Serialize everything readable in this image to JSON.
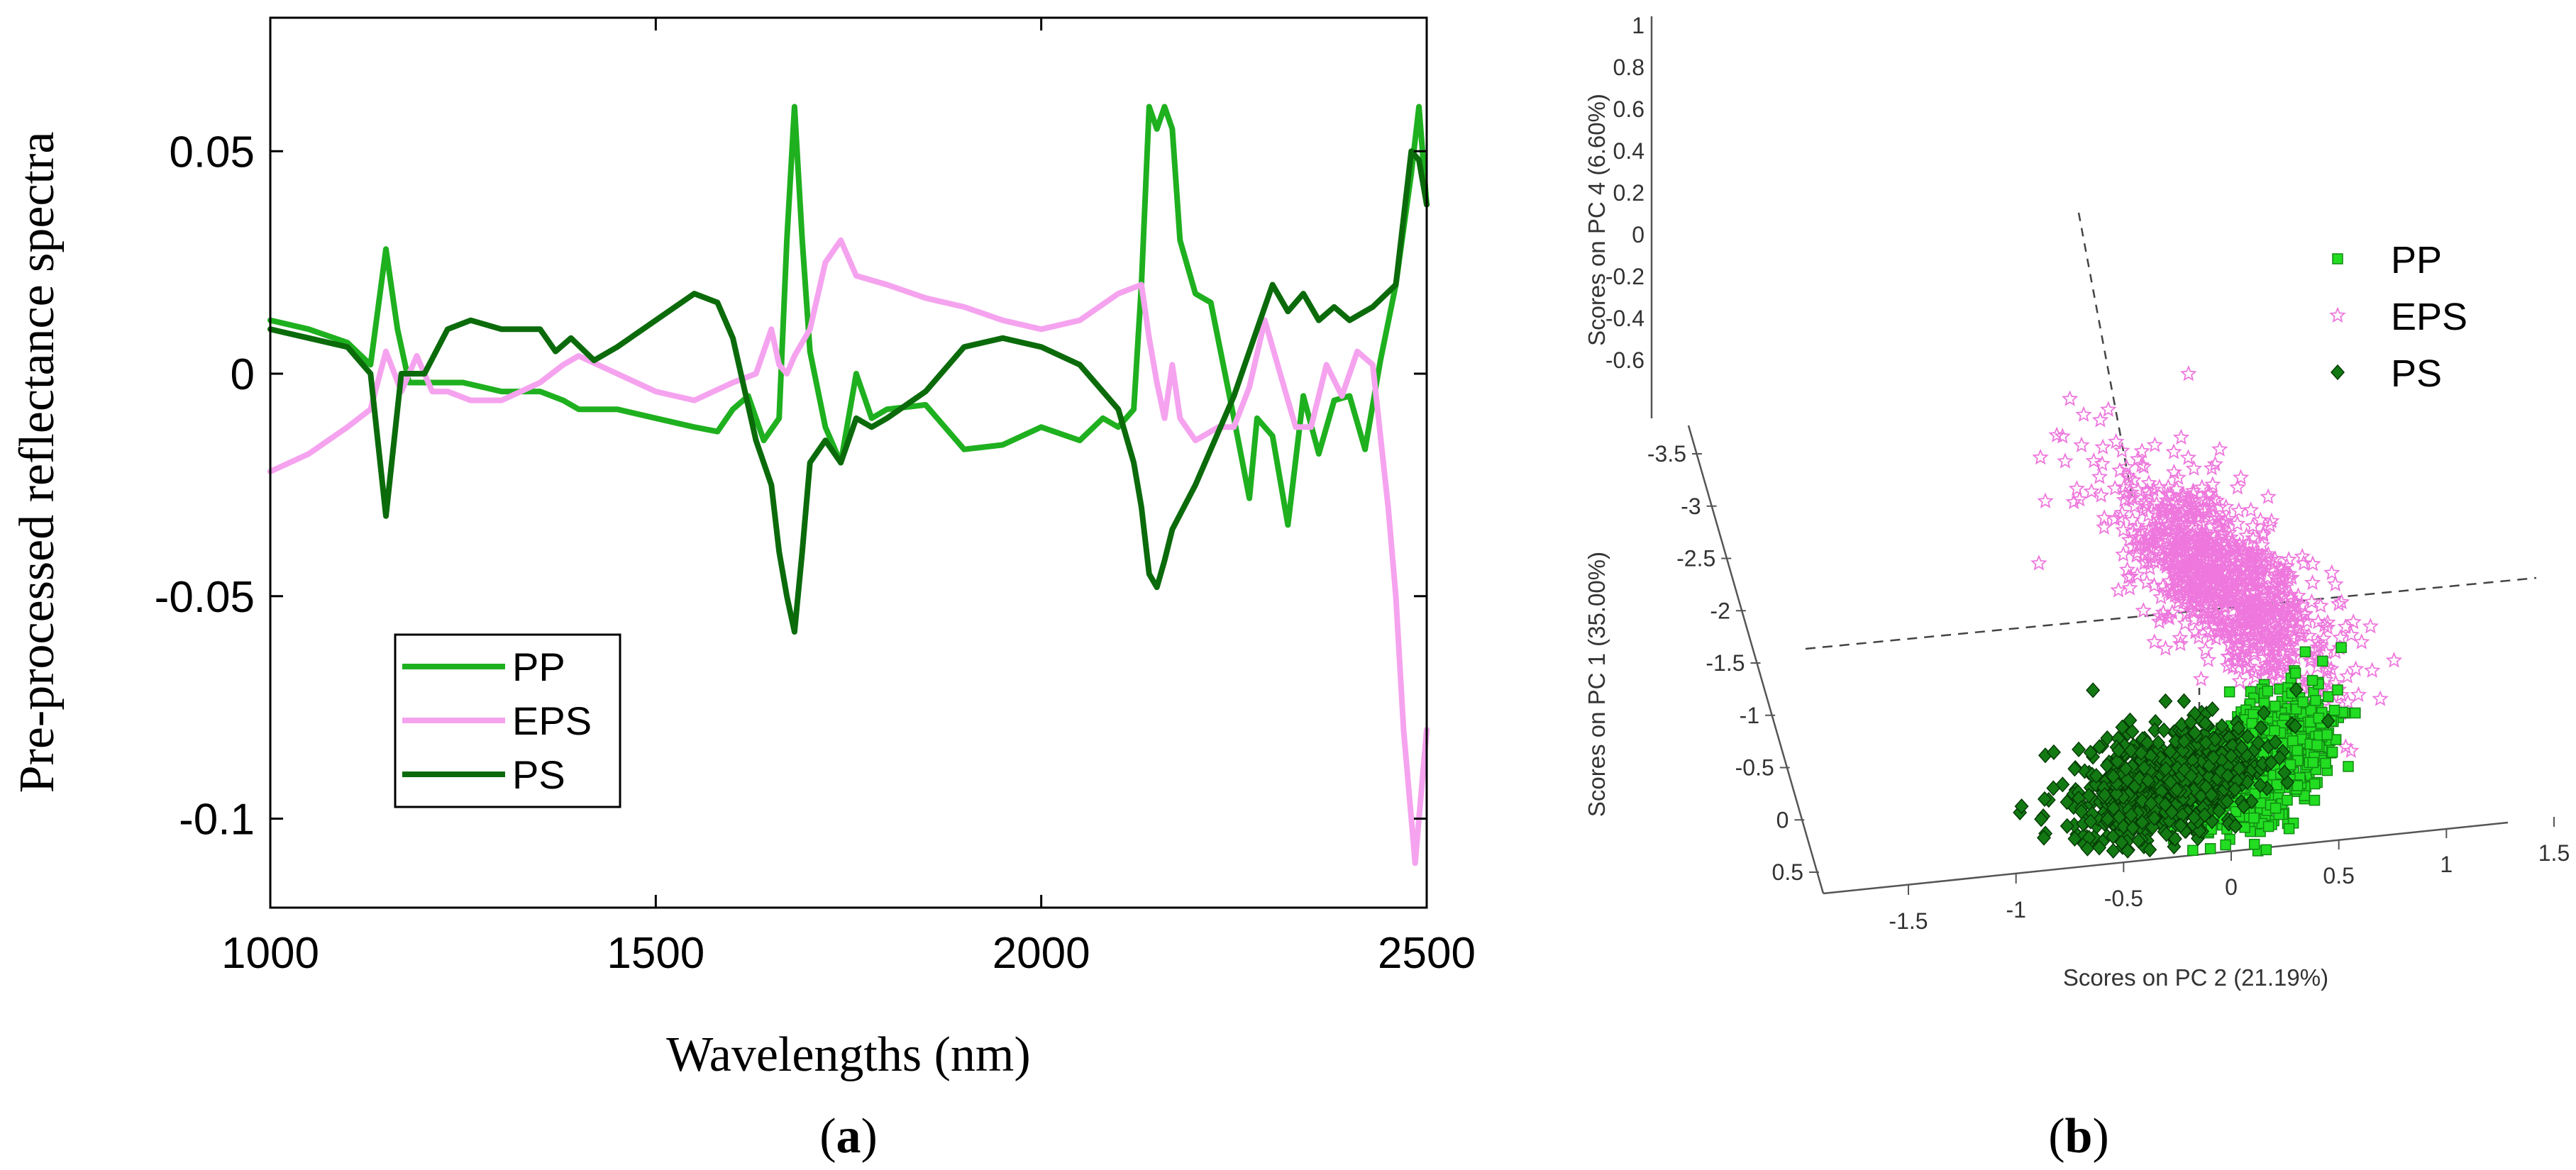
{
  "chart_data": [
    {
      "type": "line",
      "panel_label": "a",
      "xlabel": "Wavelengths (nm)",
      "ylabel": "Pre-processed reflectance spectra",
      "xlim": [
        1000,
        2500
      ],
      "ylim": [
        -0.12,
        0.08
      ],
      "xticks": [
        1000,
        1500,
        2000,
        2500
      ],
      "yticks": [
        0.05,
        0,
        -0.05,
        -0.1
      ],
      "xtick_labels": [
        "1000",
        "1500",
        "2000",
        "2500"
      ],
      "ytick_labels": [
        "0.05",
        "0",
        "-0.05",
        "-0.1"
      ],
      "legend_position": "bottom-left",
      "series": [
        {
          "name": "PP",
          "color": "#1fb01f",
          "x": [
            1000,
            1050,
            1100,
            1130,
            1150,
            1165,
            1180,
            1200,
            1250,
            1300,
            1350,
            1380,
            1400,
            1450,
            1500,
            1550,
            1580,
            1600,
            1620,
            1640,
            1660,
            1670,
            1680,
            1690,
            1700,
            1720,
            1740,
            1760,
            1780,
            1800,
            1850,
            1900,
            1950,
            2000,
            2050,
            2080,
            2100,
            2120,
            2130,
            2140,
            2150,
            2160,
            2170,
            2180,
            2200,
            2220,
            2250,
            2270,
            2280,
            2300,
            2320,
            2340,
            2360,
            2380,
            2400,
            2420,
            2440,
            2460,
            2480,
            2490,
            2500
          ],
          "values": [
            0.012,
            0.01,
            0.007,
            0.002,
            0.028,
            0.01,
            -0.002,
            -0.002,
            -0.002,
            -0.004,
            -0.004,
            -0.006,
            -0.008,
            -0.008,
            -0.01,
            -0.012,
            -0.013,
            -0.008,
            -0.005,
            -0.015,
            -0.01,
            0.03,
            0.06,
            0.03,
            0.005,
            -0.012,
            -0.02,
            0.0,
            -0.01,
            -0.008,
            -0.007,
            -0.017,
            -0.016,
            -0.012,
            -0.015,
            -0.01,
            -0.012,
            -0.008,
            0.02,
            0.06,
            0.055,
            0.06,
            0.055,
            0.03,
            0.018,
            0.016,
            -0.01,
            -0.028,
            -0.01,
            -0.014,
            -0.034,
            -0.005,
            -0.018,
            -0.006,
            -0.005,
            -0.017,
            0.003,
            0.02,
            0.045,
            0.06,
            0.038
          ]
        },
        {
          "name": "EPS",
          "color": "#f5a3ef",
          "x": [
            1000,
            1050,
            1100,
            1130,
            1150,
            1170,
            1190,
            1210,
            1230,
            1260,
            1300,
            1350,
            1380,
            1400,
            1450,
            1500,
            1550,
            1600,
            1630,
            1650,
            1660,
            1670,
            1680,
            1700,
            1720,
            1740,
            1760,
            1800,
            1850,
            1900,
            1950,
            2000,
            2050,
            2100,
            2130,
            2140,
            2150,
            2160,
            2170,
            2180,
            2200,
            2230,
            2250,
            2270,
            2290,
            2310,
            2330,
            2350,
            2370,
            2390,
            2410,
            2430,
            2450,
            2460,
            2470,
            2480,
            2485,
            2490,
            2500
          ],
          "values": [
            -0.022,
            -0.018,
            -0.012,
            -0.008,
            0.005,
            -0.004,
            0.004,
            -0.004,
            -0.004,
            -0.006,
            -0.006,
            -0.002,
            0.002,
            0.004,
            0.0,
            -0.004,
            -0.006,
            -0.002,
            0.0,
            0.01,
            0.002,
            0.0,
            0.004,
            0.01,
            0.025,
            0.03,
            0.022,
            0.02,
            0.017,
            0.015,
            0.012,
            0.01,
            0.012,
            0.018,
            0.02,
            0.008,
            -0.002,
            -0.01,
            0.002,
            -0.01,
            -0.015,
            -0.012,
            -0.012,
            -0.003,
            0.012,
            0.0,
            -0.012,
            -0.012,
            0.002,
            -0.005,
            0.005,
            0.002,
            -0.03,
            -0.05,
            -0.08,
            -0.1,
            -0.11,
            -0.1,
            -0.08
          ]
        },
        {
          "name": "PS",
          "color": "#0b6b0b",
          "x": [
            1000,
            1050,
            1100,
            1130,
            1150,
            1170,
            1200,
            1230,
            1260,
            1300,
            1350,
            1370,
            1390,
            1420,
            1450,
            1500,
            1550,
            1580,
            1600,
            1630,
            1650,
            1660,
            1670,
            1680,
            1690,
            1700,
            1720,
            1740,
            1760,
            1780,
            1800,
            1850,
            1900,
            1950,
            2000,
            2050,
            2100,
            2120,
            2130,
            2140,
            2150,
            2160,
            2170,
            2200,
            2250,
            2280,
            2300,
            2320,
            2340,
            2360,
            2380,
            2400,
            2430,
            2460,
            2480,
            2490,
            2500
          ],
          "values": [
            0.01,
            0.008,
            0.006,
            0.0,
            -0.032,
            0.0,
            0.0,
            0.01,
            0.012,
            0.01,
            0.01,
            0.005,
            0.008,
            0.003,
            0.006,
            0.012,
            0.018,
            0.016,
            0.008,
            -0.015,
            -0.025,
            -0.04,
            -0.05,
            -0.058,
            -0.04,
            -0.02,
            -0.015,
            -0.02,
            -0.01,
            -0.012,
            -0.01,
            -0.004,
            0.006,
            0.008,
            0.006,
            0.002,
            -0.008,
            -0.02,
            -0.03,
            -0.045,
            -0.048,
            -0.042,
            -0.035,
            -0.025,
            -0.005,
            0.01,
            0.02,
            0.014,
            0.018,
            0.012,
            0.015,
            0.012,
            0.015,
            0.02,
            0.05,
            0.048,
            0.038
          ]
        }
      ]
    },
    {
      "type": "scatter",
      "panel_label": "b",
      "dimensions": 3,
      "xlabel": "Scores on PC 2 (21.19%)",
      "ylabel": "Scores on PC 1 (35.00%)",
      "zlabel": "Scores on PC 4 (6.60%)",
      "xticks": [
        "-1.5",
        "-1",
        "-0.5",
        "0",
        "0.5",
        "1",
        "1.5"
      ],
      "yticks": [
        "-3.5",
        "-3",
        "-2.5",
        "-2",
        "-1.5",
        "-1",
        "-0.5",
        "0",
        "0.5"
      ],
      "zticks": [
        "1",
        "0.8",
        "0.6",
        "0.4",
        "0.2",
        "0",
        "-0.2",
        "-0.4",
        "-0.6"
      ],
      "legend_position": "top-right",
      "series": [
        {
          "name": "PP",
          "marker": "square",
          "color": "#22dd22",
          "center": {
            "pc2": 0.3,
            "pc1": -1.5,
            "pc4": -0.6
          },
          "spread": {
            "pc2": 0.35,
            "pc1": 0.8
          },
          "points_approx": 650
        },
        {
          "name": "EPS",
          "marker": "star",
          "color": "#ee77dd",
          "center": {
            "pc2": -0.3,
            "pc1": -2.8,
            "pc4": -0.1
          },
          "spread": {
            "pc2": 0.45,
            "pc4": 0.55
          },
          "points_approx": 900
        },
        {
          "name": "PS",
          "marker": "diamond",
          "color": "#137a13",
          "center": {
            "pc2": -0.5,
            "pc1": -1.9,
            "pc4": -0.8
          },
          "spread": {
            "pc2": 0.55,
            "pc1": 0.6
          },
          "points_approx": 800
        }
      ]
    }
  ]
}
